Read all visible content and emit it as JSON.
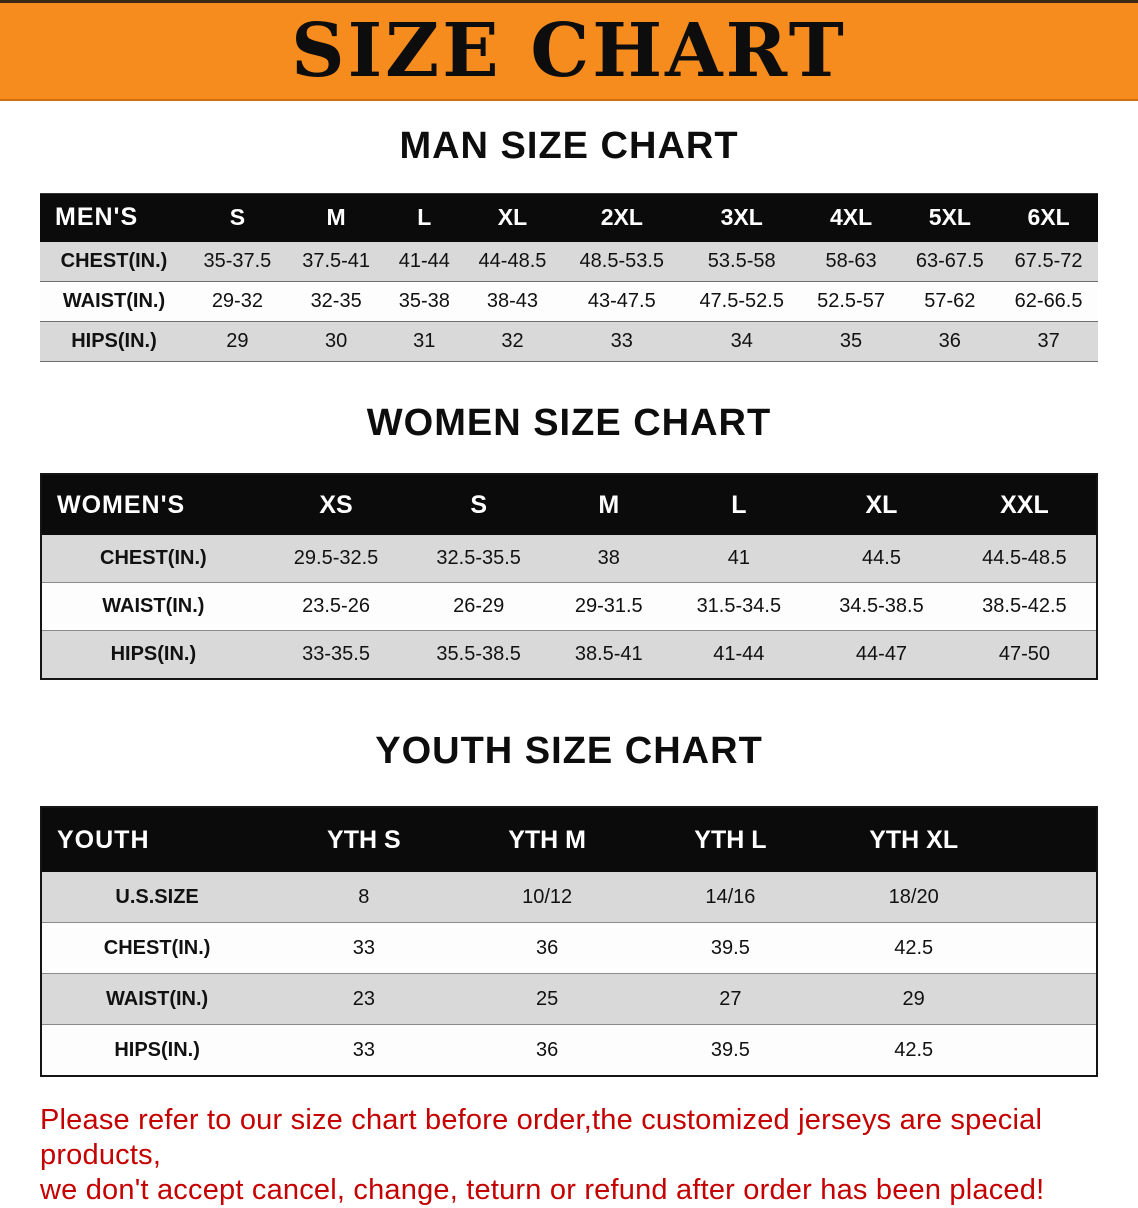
{
  "banner": {
    "title": "SIZE CHART"
  },
  "men": {
    "heading": "MAN SIZE CHART",
    "table": {
      "header": [
        "MEN'S",
        "S",
        "M",
        "L",
        "XL",
        "2XL",
        "3XL",
        "4XL",
        "5XL",
        "6XL"
      ],
      "rows": [
        [
          "CHEST(IN.)",
          "35-37.5",
          "37.5-41",
          "41-44",
          "44-48.5",
          "48.5-53.5",
          "53.5-58",
          "58-63",
          "63-67.5",
          "67.5-72"
        ],
        [
          "WAIST(IN.)",
          "29-32",
          "32-35",
          "35-38",
          "38-43",
          "43-47.5",
          "47.5-52.5",
          "52.5-57",
          "57-62",
          "62-66.5"
        ],
        [
          "HIPS(IN.)",
          "29",
          "30",
          "31",
          "32",
          "33",
          "34",
          "35",
          "36",
          "37"
        ]
      ]
    }
  },
  "women": {
    "heading": "WOMEN SIZE CHART",
    "table": {
      "header": [
        "WOMEN'S",
        "XS",
        "S",
        "M",
        "L",
        "XL",
        "XXL"
      ],
      "rows": [
        [
          "CHEST(IN.)",
          "29.5-32.5",
          "32.5-35.5",
          "38",
          "41",
          "44.5",
          "44.5-48.5"
        ],
        [
          "WAIST(IN.)",
          "23.5-26",
          "26-29",
          "29-31.5",
          "31.5-34.5",
          "34.5-38.5",
          "38.5-42.5"
        ],
        [
          "HIPS(IN.)",
          "33-35.5",
          "35.5-38.5",
          "38.5-41",
          "41-44",
          "44-47",
          "47-50"
        ]
      ]
    }
  },
  "youth": {
    "heading": "YOUTH SIZE CHART",
    "table": {
      "header": [
        "YOUTH",
        "YTH S",
        "YTH M",
        "YTH L",
        "YTH XL"
      ],
      "rows": [
        [
          "U.S.SIZE",
          "8",
          "10/12",
          "14/16",
          "18/20"
        ],
        [
          "CHEST(IN.)",
          "33",
          "36",
          "39.5",
          "42.5"
        ],
        [
          "WAIST(IN.)",
          "23",
          "25",
          "27",
          "29"
        ],
        [
          "HIPS(IN.)",
          "33",
          "36",
          "39.5",
          "42.5"
        ]
      ]
    }
  },
  "footer": {
    "line1": "Please refer to our size chart before order,the customized jerseys are special products,",
    "line2": "we don't accept cancel, change, teturn or refund after order has been placed!"
  },
  "colors": {
    "banner_bg": "#f68b1e",
    "header_bg": "#0b0b0b",
    "row_alt_bg": "#d9d9d9",
    "footer_text": "#c40000"
  }
}
